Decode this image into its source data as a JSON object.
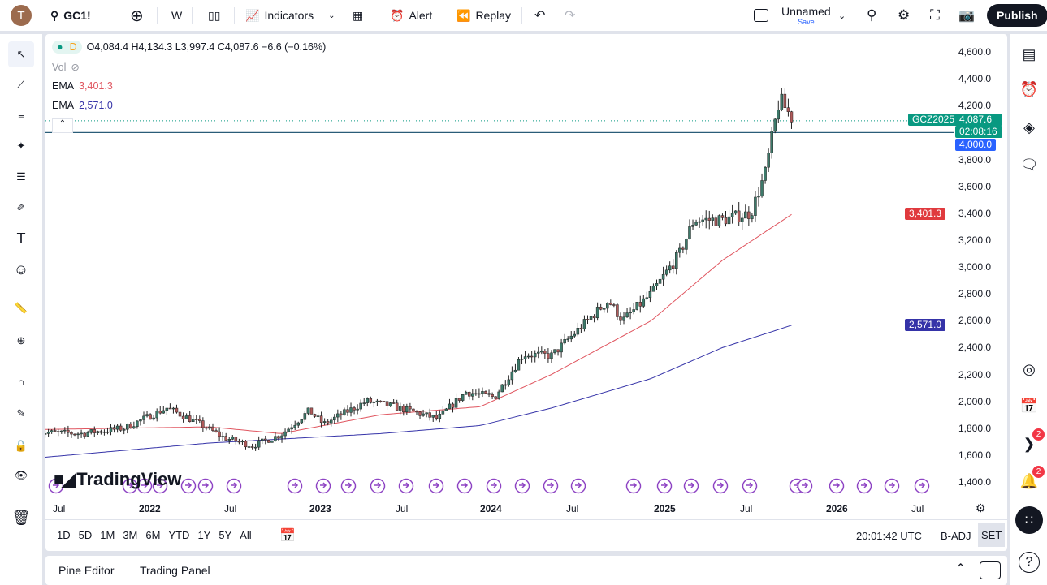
{
  "header": {
    "avatar_letter": "T",
    "symbol": "GC1!",
    "interval": "W",
    "indicators": "Indicators",
    "alert": "Alert",
    "replay": "Replay",
    "layout_name": "Unnamed",
    "layout_save": "Save",
    "publish": "Publish"
  },
  "legend": {
    "interval": "D",
    "ohlc": "O4,084.4 H4,134.3 L3,997.4 C4,087.6 −6.6 (−0.16%)",
    "vol": "Vol",
    "ema1_label": "EMA",
    "ema1_value": "3,401.3",
    "ema2_label": "EMA",
    "ema2_value": "2,571.0"
  },
  "colors": {
    "up": "#3d7a6a",
    "down": "#b05a5a",
    "ema1": "#e05660",
    "ema2": "#3533a8",
    "price_label": "#089981",
    "line_label": "#2962ff"
  },
  "price_axis": {
    "ticks": [
      "4,600.0",
      "4,400.0",
      "4,200.0",
      "3,800.0",
      "3,600.0",
      "3,400.0",
      "3,200.0",
      "3,000.0",
      "2,800.0",
      "2,600.0",
      "2,400.0",
      "2,200.0",
      "2,000.0",
      "1,800.0",
      "1,600.0",
      "1,400.0"
    ],
    "last_price": "4,087.6",
    "countdown": "02:08:16",
    "contract": "GCZ2025",
    "hline": "4,000.0",
    "ema1_tag": "3,401.3",
    "ema2_tag": "2,571.0"
  },
  "time_axis": [
    "Jul",
    "2022",
    "Jul",
    "2023",
    "Jul",
    "2024",
    "Jul",
    "2025",
    "Jul",
    "2026",
    "Jul"
  ],
  "logo": "TradingView",
  "ranges": [
    "1D",
    "5D",
    "1M",
    "3M",
    "6M",
    "YTD",
    "1Y",
    "5Y",
    "All"
  ],
  "clock": "20:01:42 UTC",
  "badj": "B-ADJ",
  "set": "SET",
  "bottom_tabs": [
    "Pine Editor",
    "Trading Panel"
  ],
  "notifications": {
    "feed": "2",
    "alerts": "2"
  },
  "chart_data": {
    "type": "candlestick",
    "price_range": [
      1400,
      4600
    ],
    "close_path": [
      [
        "2021-06",
        1770
      ],
      [
        "2021-09",
        1760
      ],
      [
        "2021-12",
        1800
      ],
      [
        "2022-03",
        1950
      ],
      [
        "2022-05",
        1850
      ],
      [
        "2022-07",
        1730
      ],
      [
        "2022-09",
        1670
      ],
      [
        "2022-11",
        1750
      ],
      [
        "2023-01",
        1930
      ],
      [
        "2023-02",
        1830
      ],
      [
        "2023-05",
        2000
      ],
      [
        "2023-07",
        1960
      ],
      [
        "2023-10",
        1870
      ],
      [
        "2023-12",
        2070
      ],
      [
        "2024-02",
        2030
      ],
      [
        "2024-04",
        2350
      ],
      [
        "2024-06",
        2340
      ],
      [
        "2024-09",
        2650
      ],
      [
        "2024-10",
        2750
      ],
      [
        "2024-11",
        2600
      ],
      [
        "2025-01",
        2800
      ],
      [
        "2025-03",
        3100
      ],
      [
        "2025-04",
        3350
      ],
      [
        "2025-06",
        3350
      ],
      [
        "2025-08",
        3400
      ],
      [
        "2025-09",
        3700
      ],
      [
        "2025-10",
        4250
      ],
      [
        "2025-11",
        4087.6
      ]
    ],
    "ema1_path": [
      [
        "2021-06",
        1790
      ],
      [
        "2022-06",
        1810
      ],
      [
        "2022-11",
        1760
      ],
      [
        "2023-06",
        1900
      ],
      [
        "2024-01",
        1960
      ],
      [
        "2024-06",
        2200
      ],
      [
        "2025-01",
        2600
      ],
      [
        "2025-06",
        3050
      ],
      [
        "2025-11",
        3401.3
      ]
    ],
    "ema2_path": [
      [
        "2021-06",
        1580
      ],
      [
        "2022-06",
        1690
      ],
      [
        "2023-06",
        1760
      ],
      [
        "2024-01",
        1820
      ],
      [
        "2024-06",
        1950
      ],
      [
        "2025-01",
        2170
      ],
      [
        "2025-06",
        2400
      ],
      [
        "2025-11",
        2571.0
      ]
    ],
    "horizontal_line": 4000
  }
}
